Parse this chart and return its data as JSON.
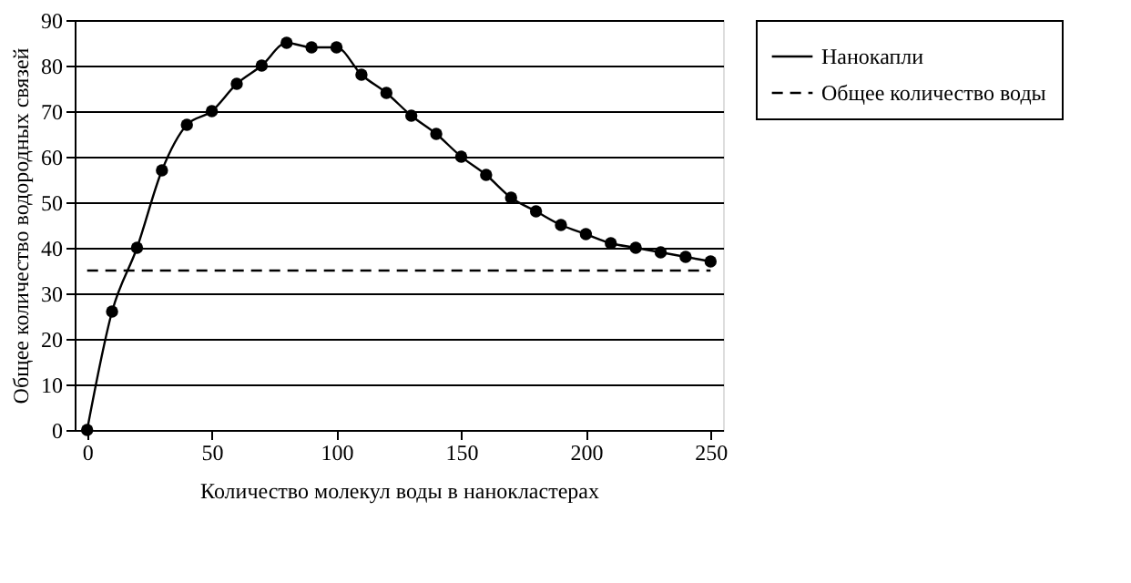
{
  "chart_data": {
    "type": "line",
    "xlabel": "Количество молекул воды в нанокластерах",
    "ylabel": "Общее количество водородных  связей",
    "x": [
      0,
      10,
      20,
      30,
      40,
      50,
      60,
      70,
      80,
      90,
      100,
      110,
      120,
      130,
      140,
      150,
      160,
      170,
      180,
      190,
      200,
      210,
      220,
      230,
      240,
      250
    ],
    "series": [
      {
        "name": "Нанокапли",
        "color": "#000000",
        "marker": "circle",
        "line_style": "solid",
        "values": [
          0,
          26,
          40,
          57,
          67,
          70,
          76,
          80,
          85,
          84,
          84,
          78,
          74,
          69,
          65,
          60,
          56,
          51,
          48,
          45,
          43,
          41,
          40,
          39,
          38,
          37
        ]
      },
      {
        "name": "Общее количество воды",
        "color": "#000000",
        "marker": "none",
        "line_style": "dashed",
        "x": [
          0,
          250
        ],
        "values": [
          35,
          35
        ]
      }
    ],
    "xlim": [
      -5,
      255
    ],
    "xticks": [
      0,
      50,
      100,
      150,
      200,
      250
    ],
    "ylim": [
      0,
      90
    ],
    "yticks": [
      0,
      10,
      20,
      30,
      40,
      50,
      60,
      70,
      80,
      90
    ],
    "grid": "y",
    "legend": "right"
  }
}
